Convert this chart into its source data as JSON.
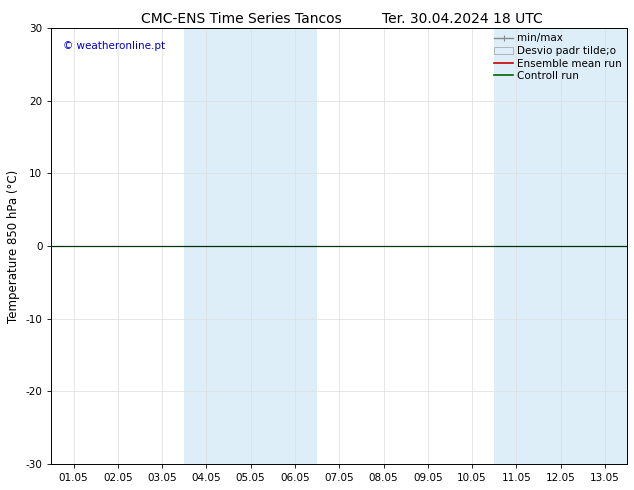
{
  "title_left": "CMC-ENS Time Series Tancos",
  "title_right": "Ter. 30.04.2024 18 UTC",
  "ylabel": "Temperature 850 hPa (°C)",
  "ylim": [
    -30,
    30
  ],
  "yticks": [
    -30,
    -20,
    -10,
    0,
    10,
    20,
    30
  ],
  "xtick_labels": [
    "01.05",
    "02.05",
    "03.05",
    "04.05",
    "05.05",
    "06.05",
    "07.05",
    "08.05",
    "09.05",
    "10.05",
    "11.05",
    "12.05",
    "13.05"
  ],
  "watermark": "© weatheronline.pt",
  "watermark_color": "#0000cc",
  "shaded_regions": [
    {
      "xstart": 3,
      "xend": 5,
      "color": "#ddeef8"
    },
    {
      "xstart": 10,
      "xend": 12,
      "color": "#ddeef8"
    }
  ],
  "hline_y": 0,
  "hline_color": "#003300",
  "legend_labels": [
    "min/max",
    "Desvio padr tilde;o",
    "Ensemble mean run",
    "Controll run"
  ],
  "legend_line_color": "#888888",
  "legend_patch_facecolor": "#ddeef8",
  "legend_patch_edgecolor": "#aaaaaa",
  "legend_red": "#cc0000",
  "legend_green": "#006600",
  "background_color": "#ffffff",
  "plot_bg_color": "#ffffff",
  "grid_color": "#dddddd",
  "title_fontsize": 10,
  "tick_fontsize": 7.5,
  "ylabel_fontsize": 8.5,
  "watermark_fontsize": 7.5,
  "legend_fontsize": 7.5
}
